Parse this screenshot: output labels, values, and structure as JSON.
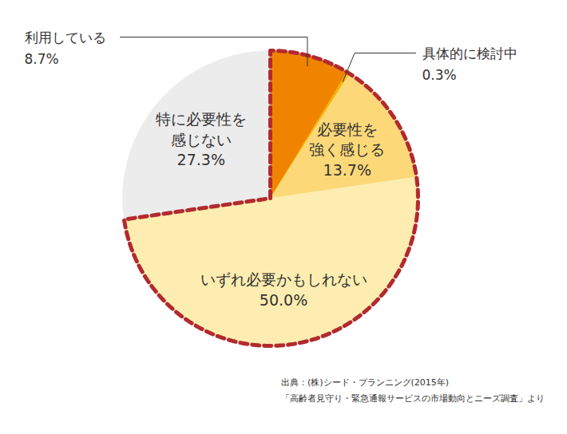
{
  "chart_data": {
    "type": "pie",
    "categories": [
      "利用している",
      "具体的に検討中",
      "必要性を\n強く感じる",
      "いずれ必要かもしれない",
      "特に必要性を\n感じない"
    ],
    "values": [
      8.7,
      0.3,
      13.7,
      50.0,
      27.3
    ],
    "value_labels": [
      "8.7%",
      "0.3%",
      "13.7%",
      "50.0%",
      "27.3%"
    ],
    "colors": [
      "#f08300",
      "#f5b400",
      "#fcd878",
      "#fdedb0",
      "#ececec"
    ],
    "data_labels": true,
    "tick_labels": false,
    "source": [
      "出典：(株)シード・プランニング(2015年)",
      "「高齢者見守り・緊急通報サービスの市場動向とニーズ調査」より"
    ]
  }
}
